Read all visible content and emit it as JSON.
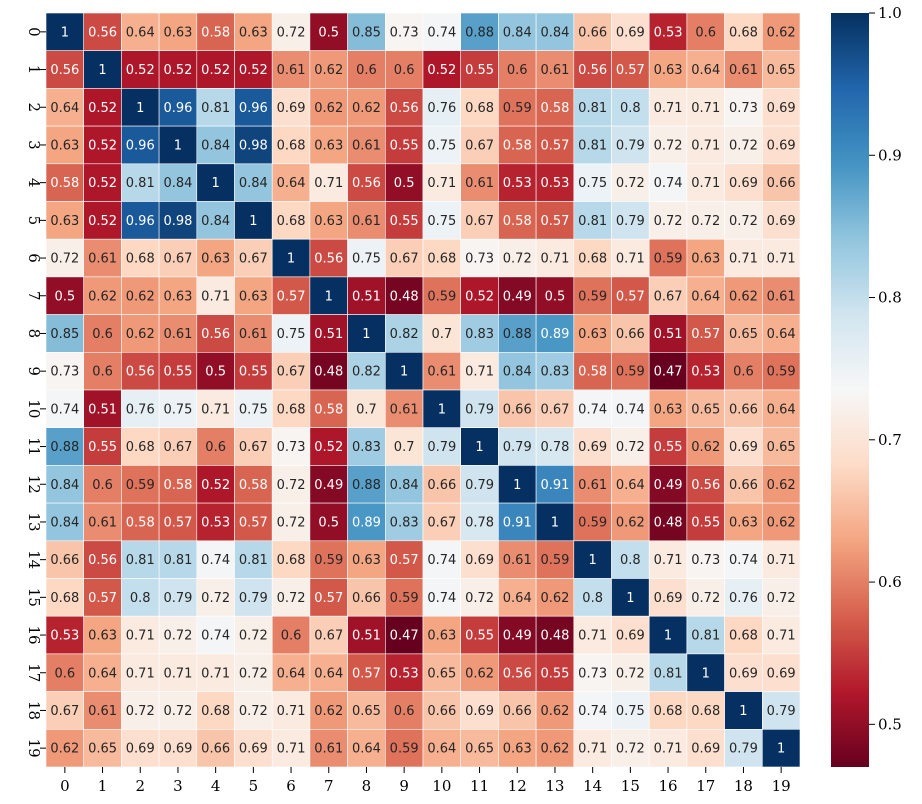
{
  "chart_data": {
    "type": "heatmap",
    "title": "",
    "xlabel": "",
    "ylabel": "",
    "x_tick_labels": [
      "0",
      "1",
      "2",
      "3",
      "4",
      "5",
      "6",
      "7",
      "8",
      "9",
      "10",
      "11",
      "12",
      "13",
      "14",
      "15",
      "16",
      "17",
      "18",
      "19"
    ],
    "y_tick_labels": [
      "0",
      "1",
      "2",
      "3",
      "4",
      "5",
      "6",
      "7",
      "8",
      "9",
      "10",
      "11",
      "12",
      "13",
      "14",
      "15",
      "16",
      "17",
      "18",
      "19"
    ],
    "colormap": "RdBu",
    "value_range": [
      0.47,
      1.0
    ],
    "colorbar_ticks": [
      "1.0",
      "0.9",
      "0.8",
      "0.7",
      "0.6",
      "0.5"
    ],
    "colorbar_tick_values": [
      1.0,
      0.9,
      0.8,
      0.7,
      0.6,
      0.5
    ],
    "annotations": true,
    "matrix": [
      [
        1,
        0.56,
        0.64,
        0.63,
        0.58,
        0.63,
        0.72,
        0.5,
        0.85,
        0.73,
        0.74,
        0.88,
        0.84,
        0.84,
        0.66,
        0.69,
        0.53,
        0.6,
        0.68,
        0.62
      ],
      [
        0.56,
        1,
        0.52,
        0.52,
        0.52,
        0.52,
        0.61,
        0.62,
        0.6,
        0.6,
        0.52,
        0.55,
        0.6,
        0.61,
        0.56,
        0.57,
        0.63,
        0.64,
        0.61,
        0.65
      ],
      [
        0.64,
        0.52,
        1,
        0.96,
        0.81,
        0.96,
        0.69,
        0.62,
        0.62,
        0.56,
        0.76,
        0.68,
        0.59,
        0.58,
        0.81,
        0.8,
        0.71,
        0.71,
        0.73,
        0.69
      ],
      [
        0.63,
        0.52,
        0.96,
        1,
        0.84,
        0.98,
        0.68,
        0.63,
        0.61,
        0.55,
        0.75,
        0.67,
        0.58,
        0.57,
        0.81,
        0.79,
        0.72,
        0.71,
        0.72,
        0.69
      ],
      [
        0.58,
        0.52,
        0.81,
        0.84,
        1,
        0.84,
        0.64,
        0.71,
        0.56,
        0.5,
        0.71,
        0.61,
        0.53,
        0.53,
        0.75,
        0.72,
        0.74,
        0.71,
        0.69,
        0.66
      ],
      [
        0.63,
        0.52,
        0.96,
        0.98,
        0.84,
        1,
        0.68,
        0.63,
        0.61,
        0.55,
        0.75,
        0.67,
        0.58,
        0.57,
        0.81,
        0.79,
        0.72,
        0.72,
        0.72,
        0.69
      ],
      [
        0.72,
        0.61,
        0.68,
        0.67,
        0.63,
        0.67,
        1,
        0.56,
        0.75,
        0.67,
        0.68,
        0.73,
        0.72,
        0.71,
        0.68,
        0.71,
        0.59,
        0.63,
        0.71,
        0.71
      ],
      [
        0.5,
        0.62,
        0.62,
        0.63,
        0.71,
        0.63,
        0.57,
        1,
        0.51,
        0.48,
        0.59,
        0.52,
        0.49,
        0.5,
        0.59,
        0.57,
        0.67,
        0.64,
        0.62,
        0.61
      ],
      [
        0.85,
        0.6,
        0.62,
        0.61,
        0.56,
        0.61,
        0.75,
        0.51,
        1,
        0.82,
        0.7,
        0.83,
        0.88,
        0.89,
        0.63,
        0.66,
        0.51,
        0.57,
        0.65,
        0.64
      ],
      [
        0.73,
        0.6,
        0.56,
        0.55,
        0.5,
        0.55,
        0.67,
        0.48,
        0.82,
        1,
        0.61,
        0.71,
        0.84,
        0.83,
        0.58,
        0.59,
        0.47,
        0.53,
        0.6,
        0.59
      ],
      [
        0.74,
        0.51,
        0.76,
        0.75,
        0.71,
        0.75,
        0.68,
        0.58,
        0.7,
        0.61,
        1,
        0.79,
        0.66,
        0.67,
        0.74,
        0.74,
        0.63,
        0.65,
        0.66,
        0.64
      ],
      [
        0.88,
        0.55,
        0.68,
        0.67,
        0.6,
        0.67,
        0.73,
        0.52,
        0.83,
        0.7,
        0.79,
        1,
        0.79,
        0.78,
        0.69,
        0.72,
        0.55,
        0.62,
        0.69,
        0.65
      ],
      [
        0.84,
        0.6,
        0.59,
        0.58,
        0.52,
        0.58,
        0.72,
        0.49,
        0.88,
        0.84,
        0.66,
        0.79,
        1,
        0.91,
        0.61,
        0.64,
        0.49,
        0.56,
        0.66,
        0.62
      ],
      [
        0.84,
        0.61,
        0.58,
        0.57,
        0.53,
        0.57,
        0.72,
        0.5,
        0.89,
        0.83,
        0.67,
        0.78,
        0.91,
        1,
        0.59,
        0.62,
        0.48,
        0.55,
        0.63,
        0.62
      ],
      [
        0.66,
        0.56,
        0.81,
        0.81,
        0.74,
        0.81,
        0.68,
        0.59,
        0.63,
        0.57,
        0.74,
        0.69,
        0.61,
        0.59,
        1,
        0.8,
        0.71,
        0.73,
        0.74,
        0.71
      ],
      [
        0.68,
        0.57,
        0.8,
        0.79,
        0.72,
        0.79,
        0.72,
        0.57,
        0.66,
        0.59,
        0.74,
        0.72,
        0.64,
        0.62,
        0.8,
        1,
        0.69,
        0.72,
        0.76,
        0.72
      ],
      [
        0.53,
        0.63,
        0.71,
        0.72,
        0.74,
        0.72,
        0.6,
        0.67,
        0.51,
        0.47,
        0.63,
        0.55,
        0.49,
        0.48,
        0.71,
        0.69,
        1,
        0.81,
        0.68,
        0.71
      ],
      [
        0.6,
        0.64,
        0.71,
        0.71,
        0.71,
        0.72,
        0.64,
        0.64,
        0.57,
        0.53,
        0.65,
        0.62,
        0.56,
        0.55,
        0.73,
        0.72,
        0.81,
        1,
        0.69,
        0.69
      ],
      [
        0.67,
        0.61,
        0.72,
        0.72,
        0.68,
        0.72,
        0.71,
        0.62,
        0.65,
        0.6,
        0.66,
        0.69,
        0.66,
        0.62,
        0.74,
        0.75,
        0.68,
        0.68,
        1,
        0.79
      ],
      [
        0.62,
        0.65,
        0.69,
        0.69,
        0.66,
        0.69,
        0.71,
        0.61,
        0.64,
        0.59,
        0.64,
        0.65,
        0.63,
        0.62,
        0.71,
        0.72,
        0.71,
        0.69,
        0.79,
        1
      ]
    ]
  }
}
